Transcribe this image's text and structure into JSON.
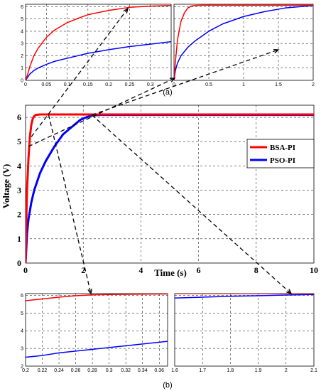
{
  "captions": {
    "top": "(a)",
    "bottom": "(b)"
  },
  "colors": {
    "bsa": "#ff0000",
    "pso": "#0000ff"
  },
  "chart_data": [
    {
      "id": "main",
      "type": "line",
      "xlabel": "Time (s)",
      "ylabel": "Voltage (V)",
      "xlim": [
        0,
        10
      ],
      "ylim": [
        0,
        6.5
      ],
      "xticks": [
        0,
        2,
        4,
        6,
        8,
        10
      ],
      "yticks": [
        0,
        1,
        2,
        3,
        4,
        5,
        6
      ],
      "xtick_labels": [
        "0",
        "2",
        "4",
        "6",
        "8",
        "10"
      ],
      "ytick_labels": [
        "0",
        "1",
        "2",
        "3",
        "4",
        "5",
        "6"
      ],
      "grid": true,
      "legend": "right",
      "series": [
        {
          "name": "BSA-PI",
          "color": "#ff0000",
          "x": [
            0,
            0.02,
            0.05,
            0.1,
            0.15,
            0.2,
            0.25,
            0.3,
            0.35,
            0.5,
            1,
            2,
            4,
            6,
            8,
            10
          ],
          "y": [
            0,
            1.5,
            3.0,
            4.3,
            5.2,
            5.7,
            5.95,
            6.05,
            6.1,
            6.12,
            6.12,
            6.12,
            6.12,
            6.12,
            6.12,
            6.12
          ]
        },
        {
          "name": "PSO-PI",
          "color": "#0000ff",
          "x": [
            0,
            0.05,
            0.1,
            0.2,
            0.3,
            0.5,
            0.7,
            1.0,
            1.3,
            1.6,
            1.9,
            2.1,
            2.3,
            2.6,
            3,
            4,
            6,
            8,
            10
          ],
          "y": [
            0,
            1.2,
            1.8,
            2.5,
            3.0,
            3.7,
            4.2,
            4.8,
            5.3,
            5.6,
            5.9,
            6.0,
            6.08,
            6.1,
            6.1,
            6.1,
            6.1,
            6.1,
            6.1
          ]
        }
      ]
    },
    {
      "id": "inset-a1",
      "type": "line",
      "xlim": [
        0,
        0.35
      ],
      "ylim": [
        0,
        6.2
      ],
      "xticks": [
        0,
        0.05,
        0.1,
        0.15,
        0.2,
        0.25,
        0.3
      ],
      "yticks": [
        0,
        1,
        2,
        3,
        4,
        5,
        6
      ],
      "xtick_labels": [
        "0",
        "0.05",
        "0.1",
        "0.15",
        "0.2",
        "0.25",
        "0.3"
      ],
      "ytick_labels": [
        "0",
        "1",
        "2",
        "3",
        "4",
        "5",
        "6"
      ],
      "grid": true,
      "series": [
        {
          "color": "#ff0000",
          "x": [
            0,
            0.005,
            0.01,
            0.02,
            0.03,
            0.05,
            0.07,
            0.1,
            0.13,
            0.15,
            0.2,
            0.25,
            0.3,
            0.35
          ],
          "y": [
            0,
            0.5,
            1.1,
            2.0,
            2.6,
            3.5,
            4.1,
            4.7,
            5.1,
            5.35,
            5.7,
            5.95,
            6.05,
            6.1
          ]
        },
        {
          "color": "#0000ff",
          "x": [
            0,
            0.005,
            0.01,
            0.02,
            0.03,
            0.05,
            0.07,
            0.1,
            0.15,
            0.2,
            0.25,
            0.3,
            0.35
          ],
          "y": [
            0,
            0.25,
            0.5,
            0.8,
            1.0,
            1.3,
            1.55,
            1.8,
            2.2,
            2.5,
            2.75,
            2.95,
            3.15
          ]
        }
      ]
    },
    {
      "id": "inset-a2",
      "type": "line",
      "xlim": [
        0,
        2
      ],
      "ylim": [
        0,
        6.2
      ],
      "xticks": [
        0,
        0.5,
        1,
        1.5,
        2
      ],
      "yticks": [
        0,
        1,
        2,
        3,
        4,
        5,
        6
      ],
      "xtick_labels": [
        "0",
        "0.5",
        "1",
        "1.5",
        "2"
      ],
      "ytick_labels": [],
      "grid": true,
      "series": [
        {
          "color": "#ff0000",
          "x": [
            0,
            0.02,
            0.05,
            0.1,
            0.15,
            0.2,
            0.25,
            0.3,
            0.4,
            2
          ],
          "y": [
            0,
            1.5,
            3.3,
            4.8,
            5.5,
            5.9,
            6.05,
            6.1,
            6.12,
            6.12
          ]
        },
        {
          "color": "#0000ff",
          "x": [
            0,
            0.02,
            0.05,
            0.1,
            0.2,
            0.3,
            0.5,
            0.7,
            1.0,
            1.3,
            1.6,
            1.8,
            2.0
          ],
          "y": [
            0,
            0.8,
            1.4,
            2.0,
            2.7,
            3.2,
            4.0,
            4.6,
            5.2,
            5.6,
            5.9,
            6.0,
            6.1
          ]
        }
      ]
    },
    {
      "id": "inset-b1",
      "type": "line",
      "xlim": [
        0.2,
        0.37
      ],
      "ylim": [
        2,
        6.1
      ],
      "xticks": [
        0.2,
        0.22,
        0.24,
        0.26,
        0.28,
        0.3,
        0.32,
        0.34,
        0.36
      ],
      "yticks": [
        2,
        3,
        4,
        5,
        6
      ],
      "xtick_labels": [
        "0.2",
        "0.22",
        "0.24",
        "0.26",
        "0.28",
        "0.3",
        "0.32",
        "0.34",
        "0.36"
      ],
      "ytick_labels": [
        "2",
        "3",
        "4",
        "5",
        "6"
      ],
      "grid": true,
      "series": [
        {
          "color": "#ff0000",
          "x": [
            0.2,
            0.22,
            0.24,
            0.26,
            0.28,
            0.3,
            0.32,
            0.34,
            0.37
          ],
          "y": [
            5.7,
            5.8,
            5.9,
            5.98,
            6.03,
            6.05,
            6.06,
            6.07,
            6.08
          ]
        },
        {
          "color": "#0000ff",
          "x": [
            0.2,
            0.22,
            0.24,
            0.26,
            0.28,
            0.3,
            0.32,
            0.34,
            0.37
          ],
          "y": [
            2.5,
            2.6,
            2.75,
            2.85,
            2.95,
            3.05,
            3.15,
            3.25,
            3.4
          ]
        }
      ]
    },
    {
      "id": "inset-b2",
      "type": "line",
      "xlim": [
        1.6,
        2.1
      ],
      "ylim": [
        2,
        6.1
      ],
      "xticks": [
        1.6,
        1.7,
        1.8,
        1.9,
        2,
        2.1
      ],
      "yticks": [
        2,
        3,
        4,
        5,
        6
      ],
      "xtick_labels": [
        "1.6",
        "1.7",
        "1.8",
        "1.9",
        "2",
        "2.1"
      ],
      "ytick_labels": [],
      "grid": true,
      "series": [
        {
          "color": "#ff0000",
          "x": [
            1.6,
            1.8,
            2.0,
            2.1
          ],
          "y": [
            6.1,
            6.1,
            6.1,
            6.1
          ]
        },
        {
          "color": "#0000ff",
          "x": [
            1.6,
            1.7,
            1.8,
            1.9,
            2.0,
            2.1
          ],
          "y": [
            5.85,
            5.9,
            5.95,
            5.98,
            6.02,
            6.05
          ]
        }
      ]
    }
  ]
}
